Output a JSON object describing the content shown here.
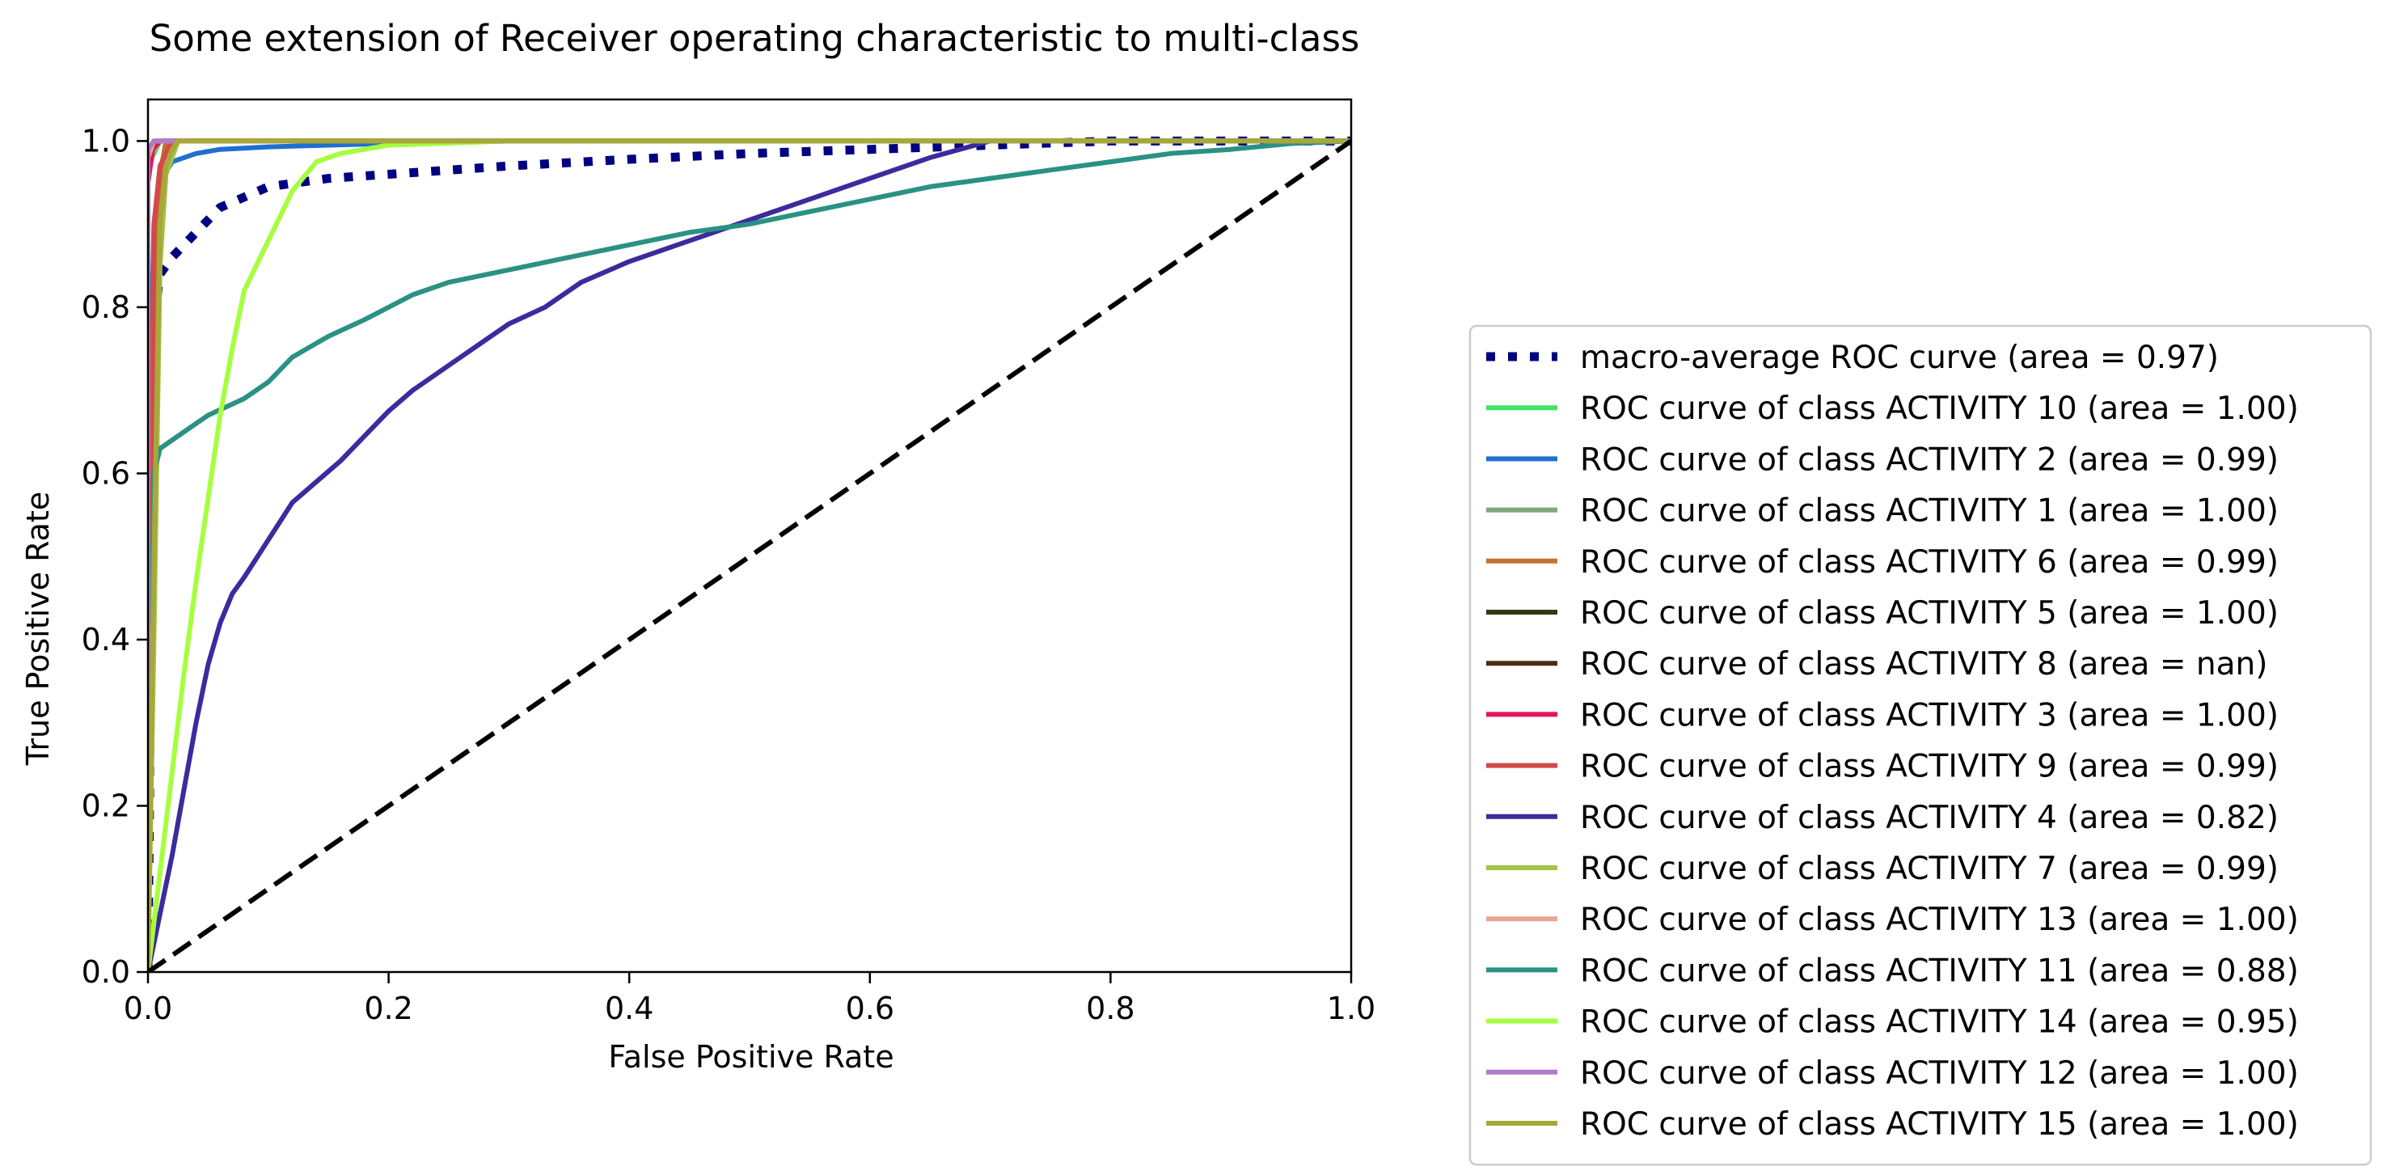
{
  "chart_data": {
    "type": "line",
    "title": "Some extension of Receiver operating characteristic to multi-class",
    "xlabel": "False Positive Rate",
    "ylabel": "True Positive Rate",
    "xlim": [
      0.0,
      1.0
    ],
    "ylim": [
      0.0,
      1.05
    ],
    "xticks": [
      "0.0",
      "0.2",
      "0.4",
      "0.6",
      "0.8",
      "1.0"
    ],
    "yticks": [
      "0.0",
      "0.2",
      "0.4",
      "0.6",
      "0.8",
      "1.0"
    ],
    "grid": false,
    "legend_position": "right",
    "series": [
      {
        "name": "macro-average ROC curve (area = 0.97)",
        "color": "#000080",
        "style": "dotted",
        "x": [
          0,
          0.005,
          0.01,
          0.02,
          0.04,
          0.06,
          0.1,
          0.15,
          0.2,
          0.3,
          0.4,
          0.5,
          0.6,
          0.7,
          0.8,
          1.0
        ],
        "y": [
          0,
          0.78,
          0.84,
          0.86,
          0.89,
          0.92,
          0.945,
          0.955,
          0.96,
          0.97,
          0.978,
          0.985,
          0.99,
          0.995,
          1.0,
          1.0
        ]
      },
      {
        "name": "ROC curve of class ACTIVITY 10 (area = 1.00)",
        "color": "#44e466",
        "style": "solid",
        "x": [
          0,
          0.0,
          0.01,
          1.0
        ],
        "y": [
          0,
          0.97,
          1.0,
          1.0
        ]
      },
      {
        "name": "ROC curve of class ACTIVITY 2 (area = 0.99)",
        "color": "#1f6fd1",
        "style": "solid",
        "x": [
          0,
          0.002,
          0.005,
          0.01,
          0.02,
          0.04,
          0.06,
          0.1,
          0.15,
          0.2,
          0.3,
          1.0
        ],
        "y": [
          0,
          0.7,
          0.9,
          0.95,
          0.975,
          0.985,
          0.99,
          0.993,
          0.995,
          0.997,
          1.0,
          1.0
        ]
      },
      {
        "name": "ROC curve of class ACTIVITY 1 (area = 1.00)",
        "color": "#7fa87a",
        "style": "solid",
        "x": [
          0,
          0.0,
          0.005,
          1.0
        ],
        "y": [
          0,
          0.98,
          1.0,
          1.0
        ]
      },
      {
        "name": "ROC curve of class ACTIVITY 6 (area = 0.99)",
        "color": "#c0732f",
        "style": "solid",
        "x": [
          0,
          0.003,
          0.006,
          0.01,
          0.015,
          1.0
        ],
        "y": [
          0,
          0.3,
          0.8,
          0.96,
          1.0,
          1.0
        ]
      },
      {
        "name": "ROC curve of class ACTIVITY 5 (area = 1.00)",
        "color": "#323a12",
        "style": "solid",
        "x": [
          0,
          0.0,
          0.005,
          1.0
        ],
        "y": [
          0,
          0.97,
          1.0,
          1.0
        ]
      },
      {
        "name": "ROC curve of class ACTIVITY 8 (area = nan)",
        "color": "#4e2c11",
        "style": "solid",
        "x": [],
        "y": []
      },
      {
        "name": "ROC curve of class ACTIVITY 3 (area = 1.00)",
        "color": "#e8145a",
        "style": "solid",
        "x": [
          0,
          0.0,
          0.004,
          0.01,
          1.0
        ],
        "y": [
          0,
          0.95,
          0.99,
          1.0,
          1.0
        ]
      },
      {
        "name": "ROC curve of class ACTIVITY 9 (area = 0.99)",
        "color": "#d44848",
        "style": "solid",
        "x": [
          0,
          0.002,
          0.005,
          0.01,
          0.02,
          1.0
        ],
        "y": [
          0,
          0.5,
          0.9,
          0.97,
          1.0,
          1.0
        ]
      },
      {
        "name": "ROC curve of class ACTIVITY 4 (area = 0.82)",
        "color": "#3c2a9e",
        "style": "solid",
        "x": [
          0,
          0.01,
          0.02,
          0.03,
          0.04,
          0.05,
          0.06,
          0.07,
          0.08,
          0.1,
          0.12,
          0.14,
          0.16,
          0.18,
          0.2,
          0.22,
          0.25,
          0.28,
          0.3,
          0.33,
          0.36,
          0.4,
          0.45,
          0.5,
          0.55,
          0.6,
          0.65,
          0.7,
          1.0
        ],
        "y": [
          0,
          0.07,
          0.14,
          0.22,
          0.3,
          0.37,
          0.42,
          0.455,
          0.475,
          0.52,
          0.565,
          0.59,
          0.615,
          0.645,
          0.675,
          0.7,
          0.73,
          0.76,
          0.78,
          0.8,
          0.83,
          0.855,
          0.88,
          0.905,
          0.93,
          0.955,
          0.98,
          1.0,
          1.0
        ]
      },
      {
        "name": "ROC curve of class ACTIVITY 7 (area = 0.99)",
        "color": "#a2c44a",
        "style": "solid",
        "x": [
          0,
          0.005,
          0.01,
          0.015,
          0.02,
          0.025,
          1.0
        ],
        "y": [
          0,
          0.4,
          0.85,
          0.96,
          0.98,
          1.0,
          1.0
        ]
      },
      {
        "name": "ROC curve of class ACTIVITY 13 (area = 1.00)",
        "color": "#eaa396",
        "style": "solid",
        "x": [
          0,
          0.0,
          0.005,
          1.0
        ],
        "y": [
          0,
          0.98,
          1.0,
          1.0
        ]
      },
      {
        "name": "ROC curve of class ACTIVITY 11 (area = 0.88)",
        "color": "#2b9183",
        "style": "solid",
        "x": [
          0,
          0.003,
          0.005,
          0.01,
          0.03,
          0.05,
          0.08,
          0.1,
          0.12,
          0.15,
          0.18,
          0.2,
          0.22,
          0.25,
          0.3,
          0.35,
          0.4,
          0.45,
          0.5,
          0.55,
          0.6,
          0.65,
          0.7,
          0.75,
          0.8,
          0.85,
          0.9,
          0.95,
          1.0
        ],
        "y": [
          0,
          0.4,
          0.6,
          0.63,
          0.65,
          0.67,
          0.69,
          0.71,
          0.74,
          0.765,
          0.785,
          0.8,
          0.815,
          0.83,
          0.845,
          0.86,
          0.875,
          0.89,
          0.9,
          0.915,
          0.93,
          0.945,
          0.955,
          0.965,
          0.975,
          0.985,
          0.99,
          0.997,
          1.0
        ]
      },
      {
        "name": "ROC curve of class ACTIVITY 14 (area = 0.95)",
        "color": "#a5ff3f",
        "style": "solid",
        "x": [
          0,
          0.01,
          0.02,
          0.03,
          0.04,
          0.05,
          0.06,
          0.07,
          0.08,
          0.1,
          0.12,
          0.14,
          0.16,
          0.2,
          0.3,
          1.0
        ],
        "y": [
          0,
          0.12,
          0.24,
          0.36,
          0.47,
          0.57,
          0.67,
          0.75,
          0.82,
          0.88,
          0.94,
          0.975,
          0.985,
          0.995,
          1.0,
          1.0
        ]
      },
      {
        "name": "ROC curve of class ACTIVITY 12 (area = 1.00)",
        "color": "#b07cc3",
        "style": "solid",
        "x": [
          0,
          0.0,
          0.005,
          1.0
        ],
        "y": [
          0,
          0.99,
          1.0,
          1.0
        ]
      },
      {
        "name": "ROC curve of class ACTIVITY 15 (area = 1.00)",
        "color": "#a6a83a",
        "style": "solid",
        "x": [
          0,
          0.005,
          0.01,
          0.015,
          0.02,
          0.025,
          1.0
        ],
        "y": [
          0,
          0.5,
          0.9,
          0.97,
          0.99,
          1.0,
          1.0
        ]
      },
      {
        "name": "",
        "color": "#000000",
        "style": "dashed",
        "x": [
          0,
          1
        ],
        "y": [
          0,
          1
        ]
      }
    ]
  }
}
